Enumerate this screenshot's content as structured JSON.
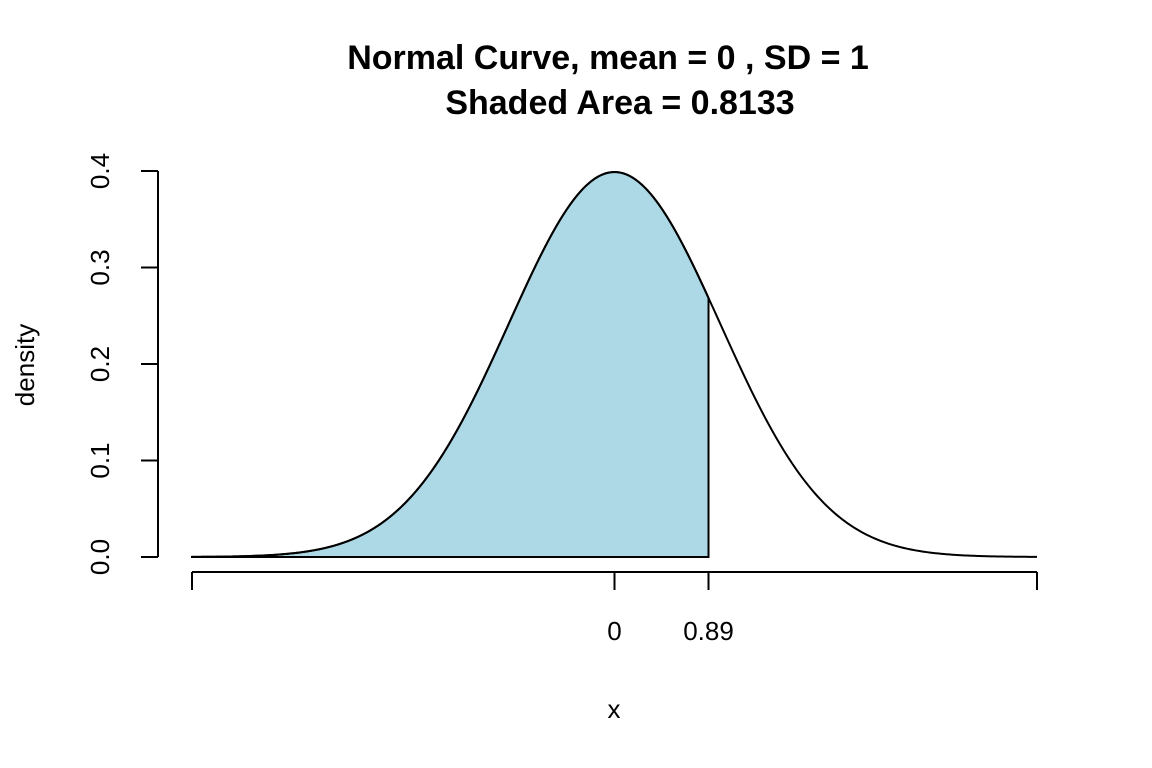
{
  "chart_data": {
    "type": "area",
    "title_line1": "Normal Curve, mean =  0 , SD =  1",
    "title_line2": "Shaded Area =  0.8133",
    "xlabel": "x",
    "ylabel": "density",
    "mean": 0,
    "sd": 1,
    "shade_from": -4,
    "shade_to": 0.89,
    "shaded_area": 0.8133,
    "xlim": [
      -4,
      4
    ],
    "ylim": [
      0,
      0.4
    ],
    "x_ticks": [
      -4,
      0,
      0.89,
      4
    ],
    "x_tick_labels": [
      "",
      "0",
      "0.89",
      ""
    ],
    "y_ticks": [
      0.0,
      0.1,
      0.2,
      0.3,
      0.4
    ],
    "y_tick_labels": [
      "0.0",
      "0.1",
      "0.2",
      "0.3",
      "0.4"
    ],
    "shade_color": "#add8e6",
    "line_color": "#000000",
    "grid": false
  }
}
